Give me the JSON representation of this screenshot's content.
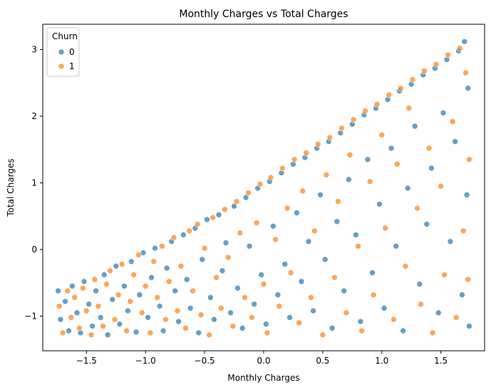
{
  "chart_data": {
    "type": "scatter",
    "title": "Monthly Charges vs Total Charges",
    "xlabel": "Monthly Charges",
    "ylabel": "Total Charges",
    "xlim": [
      -1.87,
      1.87
    ],
    "ylim": [
      -1.52,
      3.38
    ],
    "x_ticks": [
      -1.5,
      -1.0,
      -0.5,
      0.0,
      0.5,
      1.0,
      1.5
    ],
    "x_tick_labels": [
      "−1.5",
      "−1.0",
      "−0.5",
      "0.0",
      "0.5",
      "1.0",
      "1.5"
    ],
    "y_ticks": [
      -1,
      0,
      1,
      2,
      3
    ],
    "y_tick_labels": [
      "−1",
      "0",
      "1",
      "2",
      "3"
    ],
    "grid": false,
    "legend": {
      "title": "Churn",
      "placement": "top-left",
      "entries": [
        {
          "label": "0",
          "color": "#1f77b4"
        },
        {
          "label": "1",
          "color": "#ff7f0e"
        }
      ]
    },
    "series": [
      {
        "name": "0",
        "color": "#1f77b4",
        "points": [
          [
            -1.74,
            -0.62
          ],
          [
            -1.72,
            -1.05
          ],
          [
            -1.68,
            -0.78
          ],
          [
            -1.65,
            -1.22
          ],
          [
            -1.62,
            -0.55
          ],
          [
            -1.58,
            -0.95
          ],
          [
            -1.55,
            -1.25
          ],
          [
            -1.52,
            -0.48
          ],
          [
            -1.48,
            -0.82
          ],
          [
            -1.45,
            -1.15
          ],
          [
            -1.42,
            -0.62
          ],
          [
            -1.38,
            -1.02
          ],
          [
            -1.35,
            -0.38
          ],
          [
            -1.32,
            -1.28
          ],
          [
            -1.28,
            -0.75
          ],
          [
            -1.25,
            -0.25
          ],
          [
            -1.22,
            -1.12
          ],
          [
            -1.18,
            -0.55
          ],
          [
            -1.15,
            -0.92
          ],
          [
            -1.12,
            -0.18
          ],
          [
            -1.08,
            -1.24
          ],
          [
            -1.05,
            -0.68
          ],
          [
            -1.02,
            -0.05
          ],
          [
            -0.98,
            -1.02
          ],
          [
            -0.95,
            -0.42
          ],
          [
            -0.92,
            0.02
          ],
          [
            -0.88,
            -0.85
          ],
          [
            -0.85,
            -1.22
          ],
          [
            -0.82,
            -0.28
          ],
          [
            -0.78,
            0.12
          ],
          [
            -0.75,
            -0.62
          ],
          [
            -0.72,
            -1.08
          ],
          [
            -0.68,
            0.22
          ],
          [
            -0.65,
            -0.45
          ],
          [
            -0.62,
            -0.88
          ],
          [
            -0.58,
            0.32
          ],
          [
            -0.55,
            -1.25
          ],
          [
            -0.52,
            -0.15
          ],
          [
            -0.48,
            0.45
          ],
          [
            -0.45,
            -0.72
          ],
          [
            -0.42,
            -1.05
          ],
          [
            -0.38,
            0.52
          ],
          [
            -0.35,
            -0.32
          ],
          [
            -0.32,
            0.1
          ],
          [
            -0.28,
            -0.95
          ],
          [
            -0.25,
            0.65
          ],
          [
            -0.22,
            -0.58
          ],
          [
            -0.18,
            -1.18
          ],
          [
            -0.15,
            0.78
          ],
          [
            -0.12,
            0.05
          ],
          [
            -0.08,
            -0.82
          ],
          [
            -0.05,
            0.92
          ],
          [
            -0.02,
            -0.38
          ],
          [
            0.02,
            -1.12
          ],
          [
            0.05,
            1.02
          ],
          [
            0.08,
            0.35
          ],
          [
            0.12,
            -0.68
          ],
          [
            0.15,
            1.15
          ],
          [
            0.18,
            -0.22
          ],
          [
            0.22,
            -1.02
          ],
          [
            0.25,
            1.28
          ],
          [
            0.28,
            0.55
          ],
          [
            0.32,
            -0.48
          ],
          [
            0.35,
            1.38
          ],
          [
            0.38,
            0.12
          ],
          [
            0.42,
            -0.92
          ],
          [
            0.45,
            1.52
          ],
          [
            0.48,
            0.82
          ],
          [
            0.52,
            -0.15
          ],
          [
            0.55,
            1.62
          ],
          [
            0.58,
            -1.18
          ],
          [
            0.62,
            0.42
          ],
          [
            0.65,
            1.75
          ],
          [
            0.68,
            -0.62
          ],
          [
            0.72,
            1.05
          ],
          [
            0.75,
            1.88
          ],
          [
            0.78,
            0.22
          ],
          [
            0.82,
            -1.08
          ],
          [
            0.85,
            2.02
          ],
          [
            0.88,
            1.35
          ],
          [
            0.92,
            -0.35
          ],
          [
            0.95,
            2.12
          ],
          [
            0.98,
            0.68
          ],
          [
            1.02,
            -0.88
          ],
          [
            1.05,
            2.25
          ],
          [
            1.08,
            1.52
          ],
          [
            1.12,
            0.05
          ],
          [
            1.15,
            2.38
          ],
          [
            1.18,
            -1.22
          ],
          [
            1.22,
            0.92
          ],
          [
            1.25,
            2.48
          ],
          [
            1.28,
            1.85
          ],
          [
            1.32,
            -0.52
          ],
          [
            1.35,
            2.62
          ],
          [
            1.38,
            0.38
          ],
          [
            1.42,
            1.22
          ],
          [
            1.45,
            2.72
          ],
          [
            1.48,
            -0.95
          ],
          [
            1.52,
            2.05
          ],
          [
            1.55,
            2.85
          ],
          [
            1.58,
            0.12
          ],
          [
            1.62,
            1.62
          ],
          [
            1.65,
            2.98
          ],
          [
            1.68,
            -0.68
          ],
          [
            1.7,
            3.12
          ],
          [
            1.72,
            0.82
          ],
          [
            1.73,
            2.42
          ],
          [
            1.74,
            -1.15
          ]
        ]
      },
      {
        "name": "1",
        "color": "#ff7f0e",
        "points": [
          [
            -1.73,
            -0.85
          ],
          [
            -1.7,
            -1.25
          ],
          [
            -1.66,
            -0.62
          ],
          [
            -1.63,
            -1.02
          ],
          [
            -1.6,
            -0.72
          ],
          [
            -1.56,
            -1.18
          ],
          [
            -1.53,
            -0.58
          ],
          [
            -1.5,
            -0.92
          ],
          [
            -1.46,
            -1.28
          ],
          [
            -1.43,
            -0.45
          ],
          [
            -1.4,
            -0.85
          ],
          [
            -1.36,
            -1.15
          ],
          [
            -1.33,
            -0.52
          ],
          [
            -1.3,
            -0.32
          ],
          [
            -1.26,
            -1.05
          ],
          [
            -1.23,
            -0.68
          ],
          [
            -1.2,
            -0.22
          ],
          [
            -1.16,
            -1.22
          ],
          [
            -1.13,
            -0.78
          ],
          [
            -1.1,
            -0.38
          ],
          [
            -1.06,
            -0.08
          ],
          [
            -1.03,
            -0.95
          ],
          [
            -1.0,
            -0.55
          ],
          [
            -0.96,
            -1.25
          ],
          [
            -0.93,
            -0.18
          ],
          [
            -0.9,
            -0.72
          ],
          [
            -0.86,
            0.05
          ],
          [
            -0.83,
            -1.05
          ],
          [
            -0.8,
            -0.48
          ],
          [
            -0.76,
            0.18
          ],
          [
            -0.73,
            -0.92
          ],
          [
            -0.7,
            -0.25
          ],
          [
            -0.66,
            -1.18
          ],
          [
            -0.63,
            0.28
          ],
          [
            -0.6,
            -0.62
          ],
          [
            -0.56,
            0.38
          ],
          [
            -0.53,
            -0.98
          ],
          [
            -0.5,
            0.02
          ],
          [
            -0.46,
            -1.28
          ],
          [
            -0.43,
            0.48
          ],
          [
            -0.4,
            -0.42
          ],
          [
            -0.36,
            -0.88
          ],
          [
            -0.33,
            0.6
          ],
          [
            -0.3,
            -0.12
          ],
          [
            -0.26,
            -1.15
          ],
          [
            -0.23,
            0.72
          ],
          [
            -0.2,
            0.25
          ],
          [
            -0.16,
            -0.72
          ],
          [
            -0.13,
            0.85
          ],
          [
            -0.1,
            -1.02
          ],
          [
            -0.06,
            0.4
          ],
          [
            -0.03,
            0.98
          ],
          [
            0.0,
            -0.52
          ],
          [
            0.03,
            -1.25
          ],
          [
            0.06,
            1.08
          ],
          [
            0.1,
            0.15
          ],
          [
            0.13,
            -0.85
          ],
          [
            0.16,
            1.22
          ],
          [
            0.2,
            0.62
          ],
          [
            0.23,
            -0.35
          ],
          [
            0.26,
            1.35
          ],
          [
            0.3,
            -1.1
          ],
          [
            0.33,
            0.88
          ],
          [
            0.36,
            1.45
          ],
          [
            0.4,
            -0.72
          ],
          [
            0.43,
            0.28
          ],
          [
            0.46,
            1.58
          ],
          [
            0.5,
            -1.28
          ],
          [
            0.53,
            1.12
          ],
          [
            0.56,
            1.68
          ],
          [
            0.6,
            -0.42
          ],
          [
            0.63,
            0.72
          ],
          [
            0.66,
            1.82
          ],
          [
            0.7,
            -0.95
          ],
          [
            0.73,
            1.42
          ],
          [
            0.76,
            1.95
          ],
          [
            0.8,
            0.05
          ],
          [
            0.83,
            -1.22
          ],
          [
            0.86,
            2.08
          ],
          [
            0.9,
            1.02
          ],
          [
            0.93,
            -0.68
          ],
          [
            0.96,
            2.18
          ],
          [
            1.0,
            1.72
          ],
          [
            1.03,
            0.32
          ],
          [
            1.06,
            2.32
          ],
          [
            1.1,
            -1.05
          ],
          [
            1.13,
            1.28
          ],
          [
            1.16,
            2.42
          ],
          [
            1.2,
            -0.25
          ],
          [
            1.23,
            2.12
          ],
          [
            1.26,
            2.55
          ],
          [
            1.3,
            0.62
          ],
          [
            1.33,
            -0.82
          ],
          [
            1.36,
            2.68
          ],
          [
            1.4,
            1.52
          ],
          [
            1.43,
            -1.25
          ],
          [
            1.46,
            2.78
          ],
          [
            1.5,
            0.95
          ],
          [
            1.53,
            -0.38
          ],
          [
            1.56,
            2.92
          ],
          [
            1.6,
            1.92
          ],
          [
            1.63,
            -1.02
          ],
          [
            1.66,
            3.02
          ],
          [
            1.69,
            0.28
          ],
          [
            1.71,
            2.65
          ],
          [
            1.73,
            -0.45
          ],
          [
            1.74,
            1.35
          ]
        ]
      }
    ]
  }
}
